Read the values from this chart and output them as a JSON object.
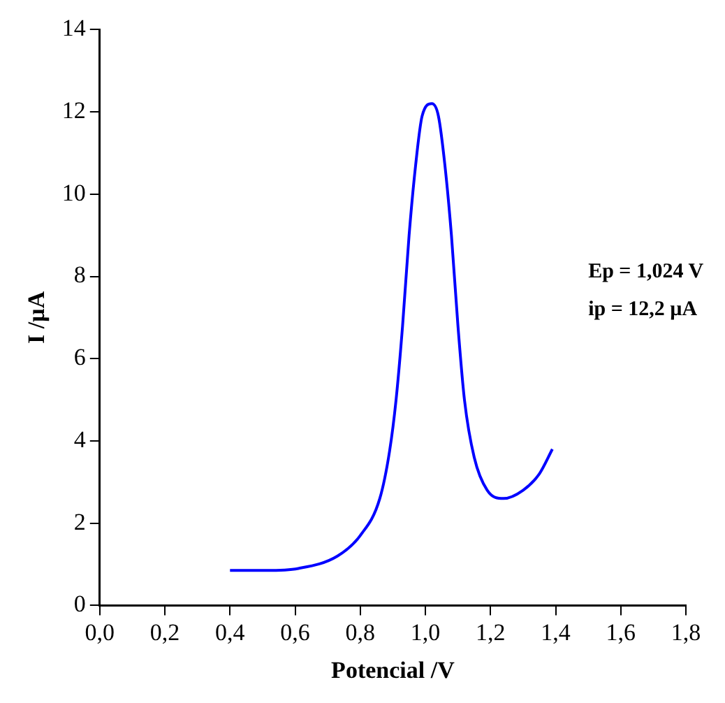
{
  "chart_data": {
    "type": "line",
    "xlabel": "Potencial /V",
    "ylabel": "I /µA",
    "x": [
      0.4,
      0.51,
      0.61,
      0.73,
      0.8,
      0.86,
      0.89,
      0.91,
      0.93,
      0.95,
      0.97,
      0.99,
      1.02,
      1.04,
      1.06,
      1.08,
      1.1,
      1.12,
      1.15,
      1.19,
      1.24,
      1.3,
      1.35,
      1.39
    ],
    "series": [
      {
        "color": "#0000ff",
        "values": [
          0.85,
          0.85,
          0.9,
          1.2,
          1.7,
          2.6,
          3.75,
          5.0,
          6.8,
          9.0,
          10.7,
          11.9,
          12.2,
          11.9,
          10.7,
          9.0,
          6.8,
          5.0,
          3.6,
          2.8,
          2.6,
          2.8,
          3.2,
          3.8
        ]
      }
    ],
    "xlim": [
      0,
      1.8
    ],
    "xticks": [
      {
        "value": 0,
        "label": "0,0"
      },
      {
        "value": 0.2,
        "label": "0,2"
      },
      {
        "value": 0.4,
        "label": "0,4"
      },
      {
        "value": 0.6,
        "label": "0,6"
      },
      {
        "value": 0.8,
        "label": "0,8"
      },
      {
        "value": 1.0,
        "label": "1,0"
      },
      {
        "value": 1.2,
        "label": "1,2"
      },
      {
        "value": 1.4,
        "label": "1,4"
      },
      {
        "value": 1.6,
        "label": "1,6"
      },
      {
        "value": 1.8,
        "label": "1,8"
      }
    ],
    "ylim": [
      0,
      14
    ],
    "yticks": [
      0,
      2,
      4,
      6,
      8,
      10,
      12,
      14
    ],
    "annotations": [
      "Ep = 1,024 V",
      "ip = 12,2 µA"
    ],
    "grid": false,
    "legend": false,
    "marker": "none",
    "line_style": "solid"
  }
}
